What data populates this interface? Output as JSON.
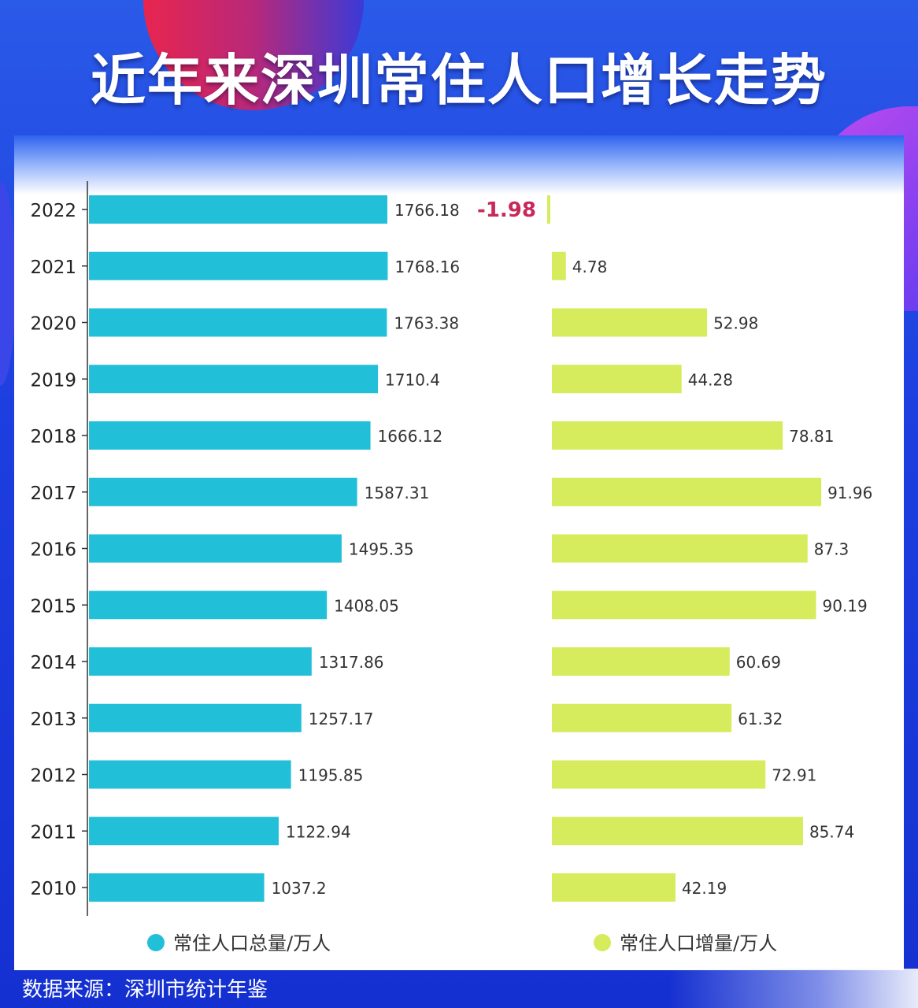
{
  "title": "近年来深圳常住人口增长走势",
  "source": "数据来源：深圳市统计年鉴",
  "chart_data": {
    "type": "bar",
    "orientation": "horizontal",
    "categories": [
      "2022",
      "2021",
      "2020",
      "2019",
      "2018",
      "2017",
      "2016",
      "2015",
      "2014",
      "2013",
      "2012",
      "2011",
      "2010"
    ],
    "series": [
      {
        "name": "常住人口总量/万人",
        "color": "#22bfd8",
        "values": [
          1766.18,
          1768.16,
          1763.38,
          1710.4,
          1666.12,
          1587.31,
          1495.35,
          1408.05,
          1317.86,
          1257.17,
          1195.85,
          1122.94,
          1037.2
        ],
        "labels": [
          "1766.18",
          "1768.16",
          "1763.38",
          "1710.4",
          "1666.12",
          "1587.31",
          "1495.35",
          "1408.05",
          "1317.86",
          "1257.17",
          "1195.85",
          "1122.94",
          "1037.2"
        ]
      },
      {
        "name": "常住人口增量/万人",
        "color": "#d6ec5c",
        "negative_label_color": "#c8285a",
        "values": [
          -1.98,
          4.78,
          52.98,
          44.28,
          78.81,
          91.96,
          87.3,
          90.19,
          60.69,
          61.32,
          72.91,
          85.74,
          42.19
        ],
        "labels": [
          "-1.98",
          "4.78",
          "52.98",
          "44.28",
          "78.81",
          "91.96",
          "87.3",
          "90.19",
          "60.69",
          "61.32",
          "72.91",
          "85.74",
          "42.19"
        ]
      }
    ],
    "legend": "bottom",
    "grid": false
  }
}
